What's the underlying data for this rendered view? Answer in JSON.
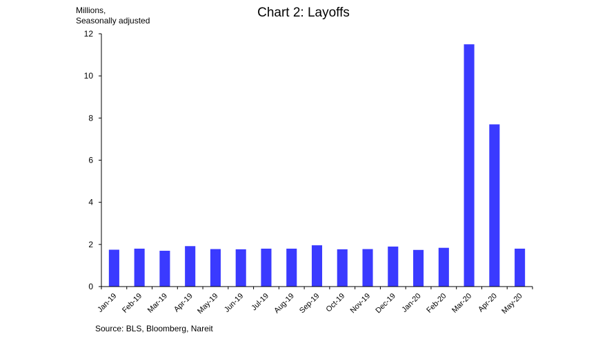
{
  "chart_data": {
    "type": "bar",
    "title": "Chart 2: Layoffs",
    "unit_label": [
      "Millions,",
      "Seasonally adjusted"
    ],
    "source": "Source: BLS, Bloomberg, Nareit",
    "categories": [
      "Jan-19",
      "Feb-19",
      "Mar-19",
      "Apr-19",
      "May-19",
      "Jun-19",
      "Jul-19",
      "Aug-19",
      "Sep-19",
      "Oct-19",
      "Nov-19",
      "Dec-19",
      "Jan-20",
      "Feb-20",
      "Mar-20",
      "Apr-20",
      "May-20"
    ],
    "values": [
      1.75,
      1.8,
      1.7,
      1.92,
      1.78,
      1.77,
      1.8,
      1.8,
      1.96,
      1.77,
      1.78,
      1.9,
      1.74,
      1.84,
      11.5,
      7.7,
      1.8
    ],
    "ylim": [
      0,
      12
    ],
    "yticks": [
      0,
      2,
      4,
      6,
      8,
      10,
      12
    ],
    "bar_color": "#3a3aff",
    "grid": false,
    "xlabel": "",
    "ylabel": ""
  }
}
